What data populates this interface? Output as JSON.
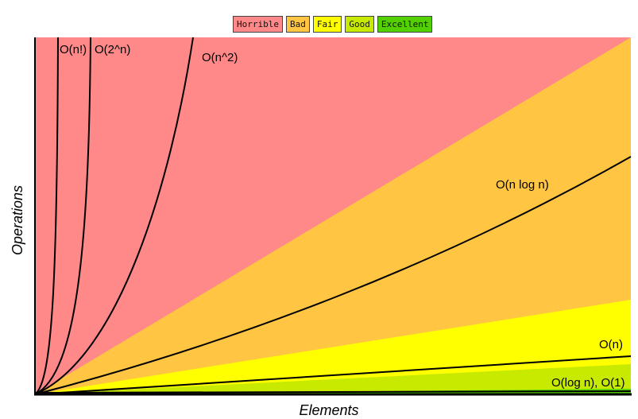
{
  "chart_data": {
    "type": "area",
    "xlabel": "Elements",
    "ylabel": "Operations",
    "legend_position": "top-center",
    "legend": [
      {
        "label": "Horrible",
        "color": "#ff8888"
      },
      {
        "label": "Bad",
        "color": "#ffc543"
      },
      {
        "label": "Fair",
        "color": "#ffff00"
      },
      {
        "label": "Good",
        "color": "#c8ea00"
      },
      {
        "label": "Excellent",
        "color": "#53d000"
      }
    ],
    "curves": [
      {
        "label": "O(n!)"
      },
      {
        "label": "O(2^n)"
      },
      {
        "label": "O(n^2)"
      },
      {
        "label": "O(n log n)"
      },
      {
        "label": "O(n)"
      },
      {
        "label": "O(log n), O(1)"
      }
    ]
  }
}
